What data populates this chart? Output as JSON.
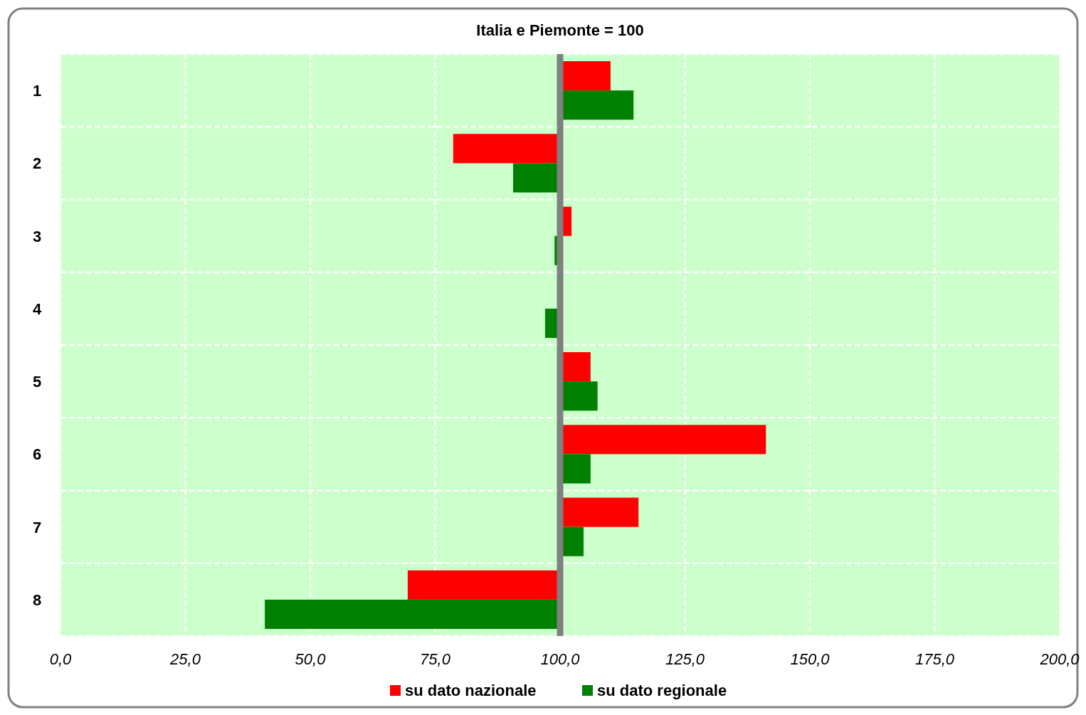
{
  "chart_data": {
    "type": "bar",
    "orientation": "horizontal",
    "title": "Italia e Piemonte = 100",
    "categories": [
      "1",
      "2",
      "3",
      "4",
      "5",
      "6",
      "7",
      "8"
    ],
    "series": [
      {
        "name": "su dato nazionale",
        "color": "#ff0000",
        "base": [
          100,
          100,
          100,
          null,
          100,
          100,
          100,
          100
        ],
        "values": [
          10.1,
          -21.4,
          2.3,
          null,
          6.1,
          41.2,
          15.7,
          -30.5
        ]
      },
      {
        "name": "su dato regionale",
        "color": "#008000",
        "base": [
          100,
          100,
          100,
          100,
          100,
          100,
          100,
          100
        ],
        "values": [
          14.7,
          -9.4,
          -1.1,
          -3.0,
          7.5,
          6.1,
          4.7,
          -59.1
        ]
      }
    ],
    "xlim": [
      0,
      200
    ],
    "xticks": [
      {
        "value": 0,
        "label": "0,0"
      },
      {
        "value": 25,
        "label": "25,0"
      },
      {
        "value": 50,
        "label": "50,0"
      },
      {
        "value": 75,
        "label": "75,0"
      },
      {
        "value": 100,
        "label": "100,0"
      },
      {
        "value": 125,
        "label": "125,0"
      },
      {
        "value": 150,
        "label": "150,0"
      },
      {
        "value": 175,
        "label": "175,0"
      },
      {
        "value": 200,
        "label": "200,0"
      }
    ],
    "ref_lines": [
      {
        "axis": "x",
        "value": 100,
        "color": "#808080"
      }
    ],
    "grid": true,
    "legend": "bottom"
  }
}
